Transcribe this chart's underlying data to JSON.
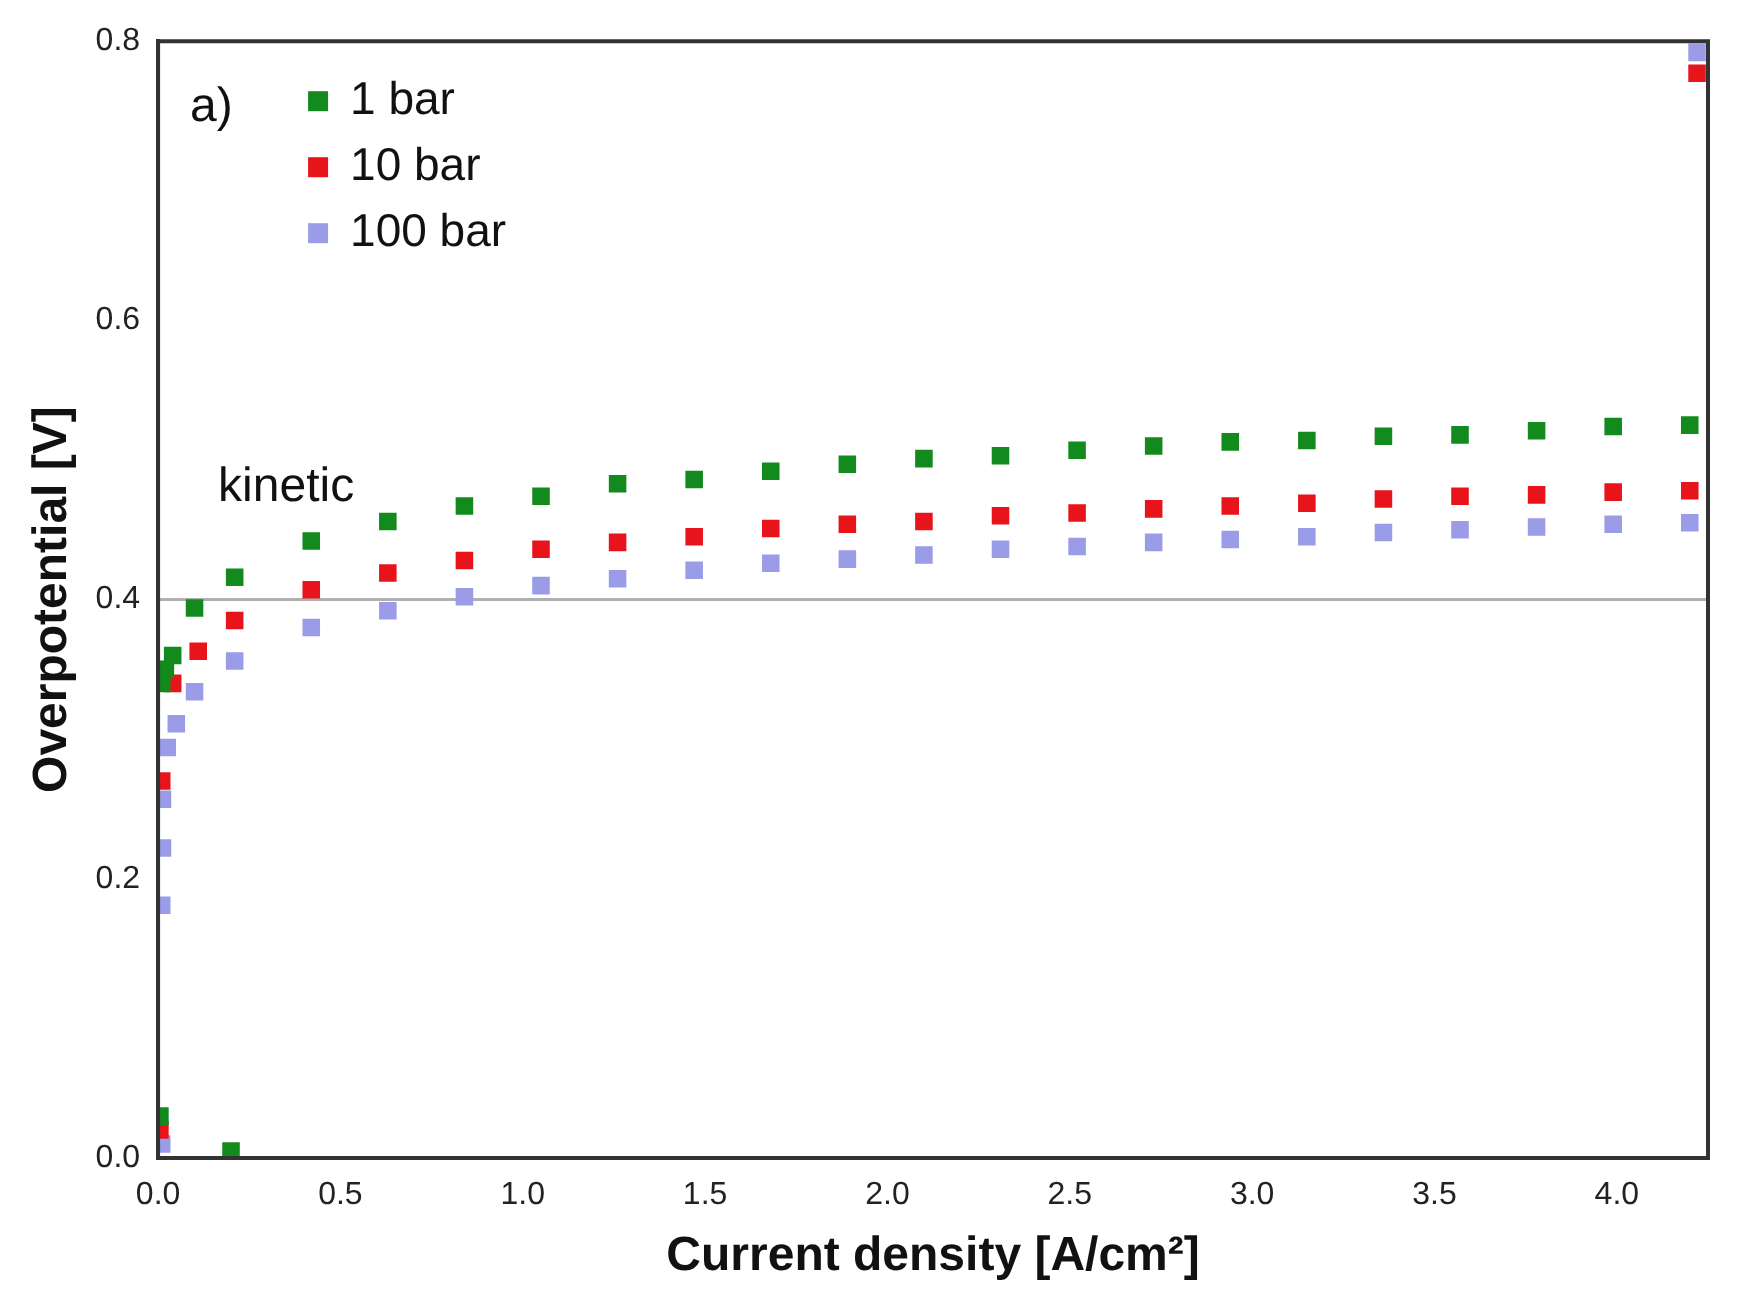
{
  "chart_data": {
    "type": "scatter",
    "xlabel": "Current density [A/cm²]",
    "ylabel": "Overpotential [V]",
    "annotations": [
      "a)",
      "kinetic"
    ],
    "xlim": [
      0,
      4.25
    ],
    "ylim": [
      0,
      0.8
    ],
    "xticks": [
      {
        "value": 0,
        "label": "0.0"
      },
      {
        "value": 0.5,
        "label": "0.5"
      },
      {
        "value": 1,
        "label": "1.0"
      },
      {
        "value": 1.5,
        "label": "1.5"
      },
      {
        "value": 2,
        "label": "2.0"
      },
      {
        "value": 2.5,
        "label": "2.5"
      },
      {
        "value": 3,
        "label": "3.0"
      },
      {
        "value": 3.5,
        "label": "3.5"
      },
      {
        "value": 4,
        "label": "4.0"
      }
    ],
    "yticks": [
      {
        "value": 0,
        "label": "0.0"
      },
      {
        "value": 0.2,
        "label": "0.2"
      },
      {
        "value": 0.4,
        "label": "0.4"
      },
      {
        "value": 0.6,
        "label": "0.6"
      },
      {
        "value": 0.8,
        "label": "0.8"
      }
    ],
    "ref_lines": [
      {
        "axis": "y",
        "value": 0.4,
        "color": "#b0b0b0"
      }
    ],
    "legend": "top left",
    "marker": "square",
    "grid": false,
    "series": [
      {
        "name": "1 bar",
        "color": "#138a1e",
        "x": [
          0.005,
          0.01,
          0.02,
          0.04,
          0.1,
          0.2,
          0.21,
          0.42,
          0.63,
          0.84,
          1.05,
          1.26,
          1.47,
          1.68,
          1.89,
          2.1,
          2.31,
          2.52,
          2.73,
          2.94,
          3.15,
          3.36,
          3.57,
          3.78,
          3.99,
          4.2
        ],
        "values": [
          0.03,
          0.34,
          0.35,
          0.36,
          0.394,
          0.005,
          0.416,
          0.442,
          0.456,
          0.467,
          0.474,
          0.483,
          0.486,
          0.492,
          0.497,
          0.501,
          0.503,
          0.507,
          0.51,
          0.513,
          0.514,
          0.517,
          0.518,
          0.521,
          0.524,
          0.525
        ]
      },
      {
        "name": "10 bar",
        "color": "#e8141c",
        "x": [
          0.005,
          0.01,
          0.04,
          0.11,
          0.21,
          0.42,
          0.63,
          0.84,
          1.05,
          1.26,
          1.47,
          1.68,
          1.89,
          2.1,
          2.31,
          2.52,
          2.73,
          2.94,
          3.15,
          3.36,
          3.57,
          3.78,
          3.99,
          4.2,
          4.22
        ],
        "values": [
          0.02,
          0.27,
          0.34,
          0.363,
          0.385,
          0.407,
          0.419,
          0.428,
          0.436,
          0.441,
          0.445,
          0.451,
          0.454,
          0.456,
          0.46,
          0.462,
          0.465,
          0.467,
          0.469,
          0.472,
          0.474,
          0.475,
          0.477,
          0.478,
          0.777
        ]
      },
      {
        "name": "100 bar",
        "color": "#9a9ce8",
        "x": [
          0.01,
          0.01,
          0.012,
          0.012,
          0.025,
          0.05,
          0.1,
          0.21,
          0.42,
          0.63,
          0.84,
          1.05,
          1.26,
          1.47,
          1.68,
          1.89,
          2.1,
          2.31,
          2.52,
          2.73,
          2.94,
          3.15,
          3.36,
          3.57,
          3.78,
          3.99,
          4.2,
          4.22
        ],
        "values": [
          0.01,
          0.181,
          0.222,
          0.257,
          0.294,
          0.311,
          0.334,
          0.356,
          0.38,
          0.392,
          0.402,
          0.41,
          0.415,
          0.421,
          0.426,
          0.429,
          0.432,
          0.436,
          0.438,
          0.441,
          0.443,
          0.445,
          0.448,
          0.45,
          0.452,
          0.454,
          0.455,
          0.792
        ]
      }
    ]
  }
}
